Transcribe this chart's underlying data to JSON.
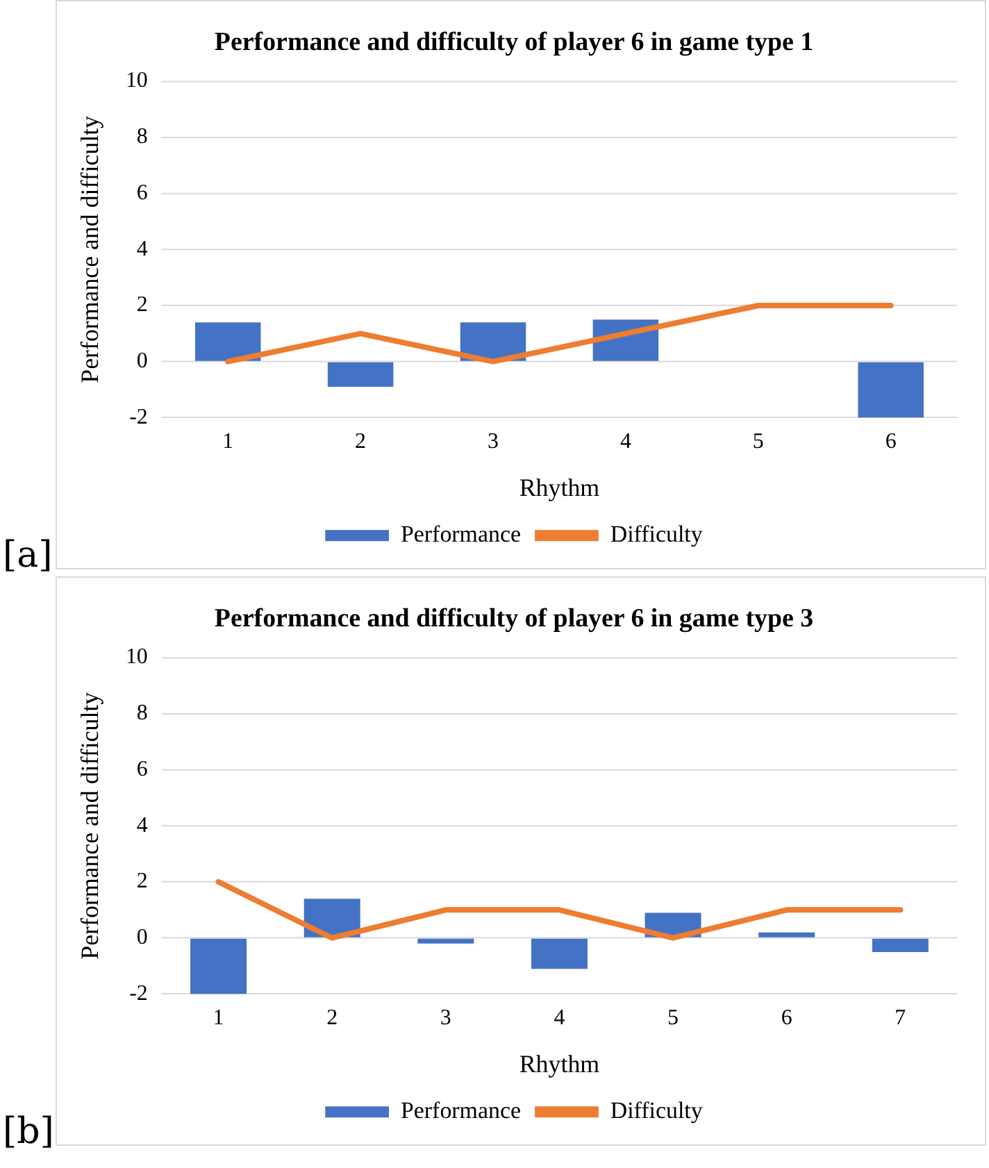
{
  "chart_data": [
    {
      "type": "bar",
      "title": "Performance and difficulty of player 6 in game type 1",
      "xlabel": "Rhythm",
      "ylabel": "Performance and difficulty",
      "categories": [
        "1",
        "2",
        "3",
        "4",
        "5",
        "6"
      ],
      "series": [
        {
          "name": "Performance",
          "color": "#4472c4",
          "values": [
            1.4,
            -0.9,
            1.4,
            1.5,
            0,
            -2
          ]
        },
        {
          "name": "Difficulty",
          "type": "line",
          "color": "#ed7d31",
          "values": [
            0,
            1,
            0,
            1,
            2,
            2
          ]
        }
      ],
      "ylim": [
        -2,
        10
      ],
      "yticks": [
        -2,
        0,
        2,
        4,
        6,
        8,
        10
      ],
      "grid": "y",
      "legend": "bottom",
      "marker": "none",
      "annotations": [
        "[a]"
      ]
    },
    {
      "type": "bar",
      "title": "Performance and difficulty of player 6 in game type 3",
      "xlabel": "Rhythm",
      "ylabel": "Performance and difficulty",
      "categories": [
        "1",
        "2",
        "3",
        "4",
        "5",
        "6",
        "7"
      ],
      "series": [
        {
          "name": "Performance",
          "color": "#4472c4",
          "values": [
            -2,
            1.4,
            -0.2,
            -1.1,
            0.9,
            0.2,
            -0.5
          ]
        },
        {
          "name": "Difficulty",
          "type": "line",
          "color": "#ed7d31",
          "values": [
            2,
            0,
            1,
            1,
            0,
            1,
            1
          ]
        }
      ],
      "ylim": [
        -2,
        10
      ],
      "yticks": [
        -2,
        0,
        2,
        4,
        6,
        8,
        10
      ],
      "grid": "y",
      "legend": "bottom",
      "marker": "none",
      "annotations": [
        "[b]"
      ]
    }
  ]
}
